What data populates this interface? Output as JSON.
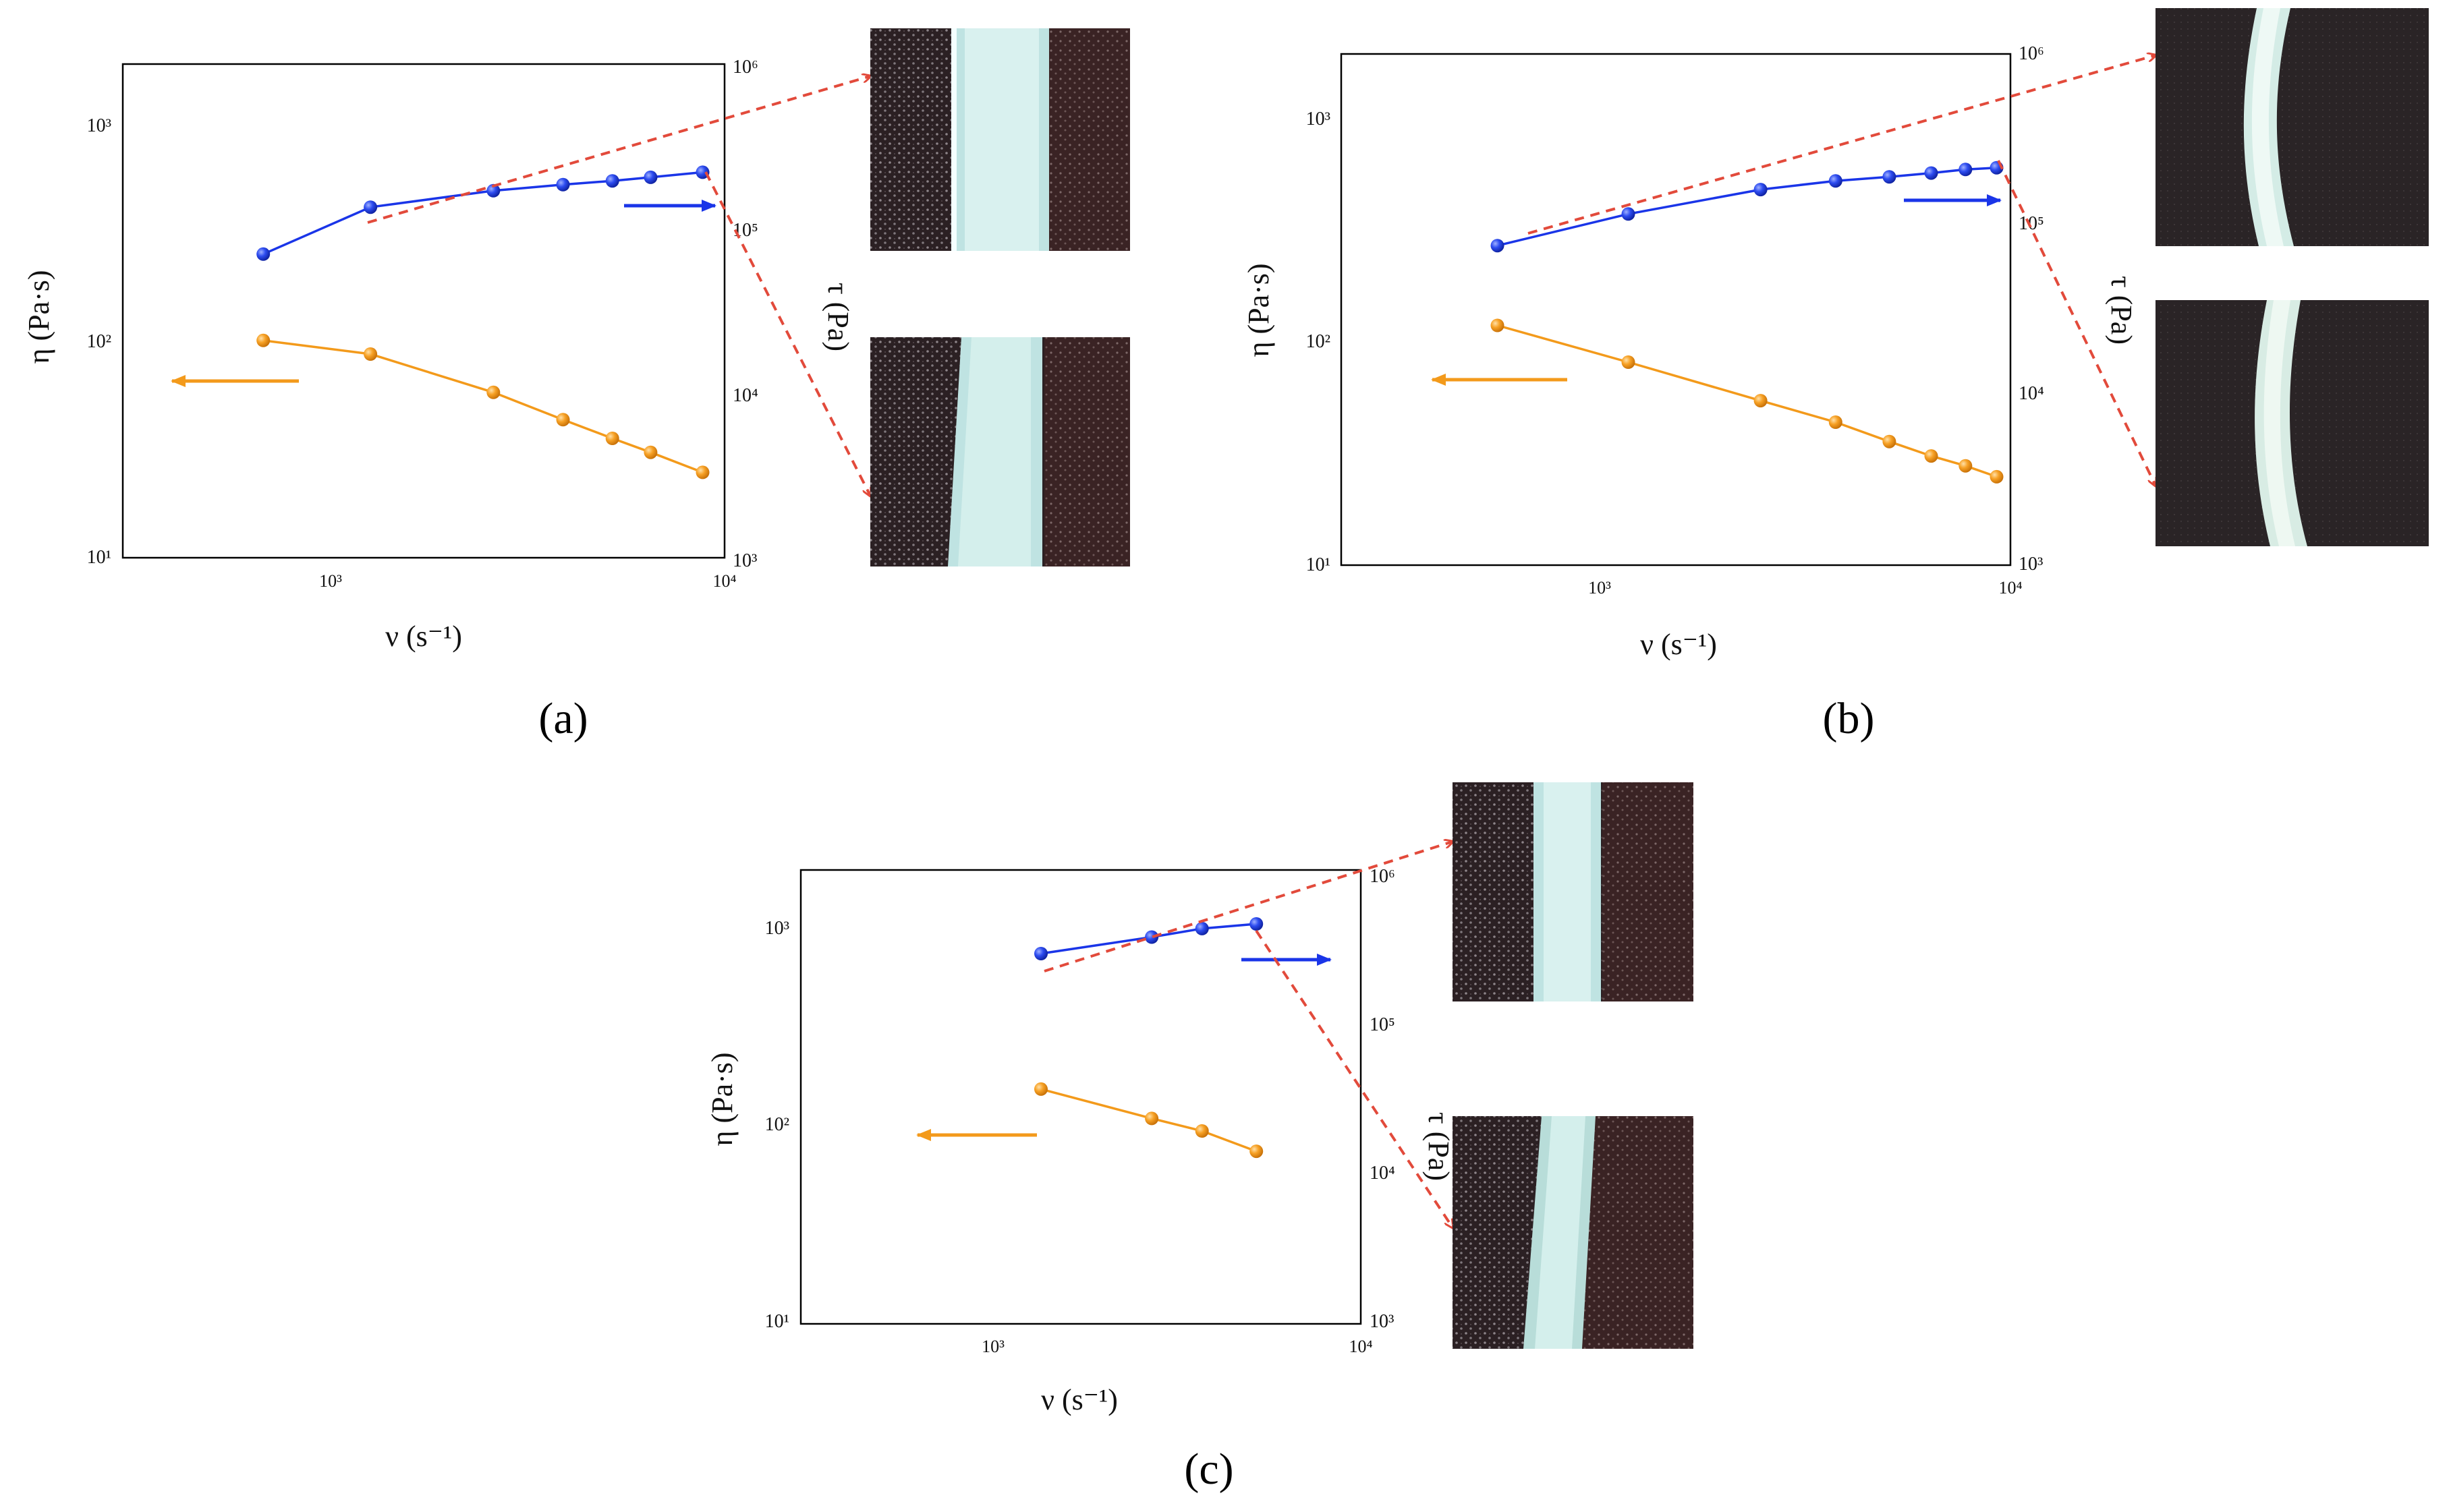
{
  "colors": {
    "blue": "#1a35e8",
    "orange": "#f39a1b",
    "red_dashed": "#e24a3b",
    "axis": "#000000"
  },
  "chart_data": [
    {
      "panel": "a",
      "type": "line",
      "xscale": "log",
      "xlim": [
        300,
        10000
      ],
      "y_left_scale": "log",
      "y_left_lim": [
        10,
        2000
      ],
      "y_right_scale": "log",
      "y_right_lim": [
        1000,
        1000000
      ],
      "xlabel": "ν (s⁻¹)",
      "ylabel_left": "η (Pa·s)",
      "ylabel_right": "τ (Pa)",
      "x_ticks": [
        "10³",
        "10⁴"
      ],
      "y_left_ticks": [
        "10¹",
        "10²",
        "10³"
      ],
      "y_right_ticks": [
        "10³",
        "10⁴",
        "10⁵",
        "10⁶"
      ],
      "series": [
        {
          "axis": "right",
          "color": "blue",
          "x": [
            680,
            1270,
            2600,
            3900,
            5200,
            6500,
            8800
          ],
          "y": [
            70000,
            135000,
            170000,
            185000,
            195000,
            205000,
            220000
          ]
        },
        {
          "axis": "left",
          "color": "orange",
          "x": [
            680,
            1270,
            2600,
            3900,
            5200,
            6500,
            8800
          ],
          "y": [
            103,
            89,
            59,
            44,
            36,
            31,
            25
          ]
        }
      ],
      "grid": false,
      "photo_count": 2
    },
    {
      "panel": "b",
      "type": "line",
      "xscale": "log",
      "xlim": [
        300,
        10000
      ],
      "y_left_scale": "log",
      "y_left_lim": [
        10,
        2000
      ],
      "y_right_scale": "log",
      "y_right_lim": [
        1000,
        1000000
      ],
      "xlabel": "ν (s⁻¹)",
      "ylabel_left": "η (Pa·s)",
      "ylabel_right": "τ (Pa)",
      "x_ticks": [
        "10³",
        "10⁴"
      ],
      "y_left_ticks": [
        "10¹",
        "10²",
        "10³"
      ],
      "y_right_ticks": [
        "10³",
        "10⁴",
        "10⁵",
        "10⁶"
      ],
      "series": [
        {
          "axis": "right",
          "color": "blue",
          "x": [
            680,
            1350,
            2700,
            4000,
            5300,
            6600,
            7900,
            9300
          ],
          "y": [
            75000,
            115000,
            160000,
            180000,
            190000,
            200000,
            210000,
            215000
          ]
        },
        {
          "axis": "left",
          "color": "orange",
          "x": [
            680,
            1350,
            2700,
            4000,
            5300,
            6600,
            7900,
            9300
          ],
          "y": [
            120,
            82,
            55,
            44,
            36,
            31,
            28,
            25
          ]
        }
      ],
      "grid": false,
      "photo_count": 2
    },
    {
      "panel": "c",
      "type": "line",
      "xscale": "log",
      "xlim": [
        300,
        10000
      ],
      "y_left_scale": "log",
      "y_left_lim": [
        10,
        2000
      ],
      "y_right_scale": "log",
      "y_right_lim": [
        1000,
        1000000
      ],
      "xlabel": "ν (s⁻¹)",
      "ylabel_left": "η (Pa·s)",
      "ylabel_right": "τ (Pa)",
      "x_ticks": [
        "10³",
        "10⁴"
      ],
      "y_left_ticks": [
        "10¹",
        "10²",
        "10³"
      ],
      "y_right_ticks": [
        "10³",
        "10⁴",
        "10⁵",
        "10⁶"
      ],
      "series": [
        {
          "axis": "right",
          "color": "blue",
          "x": [
            1350,
            2700,
            3700,
            5200
          ],
          "y": [
            280000,
            360000,
            410000,
            440000
          ]
        },
        {
          "axis": "left",
          "color": "orange",
          "x": [
            1350,
            2700,
            3700,
            5200
          ],
          "y": [
            155,
            110,
            95,
            75
          ]
        }
      ],
      "grid": false,
      "photo_count": 2
    }
  ],
  "panel_labels": {
    "a": "(a)",
    "b": "(b)",
    "c": "(c)"
  }
}
